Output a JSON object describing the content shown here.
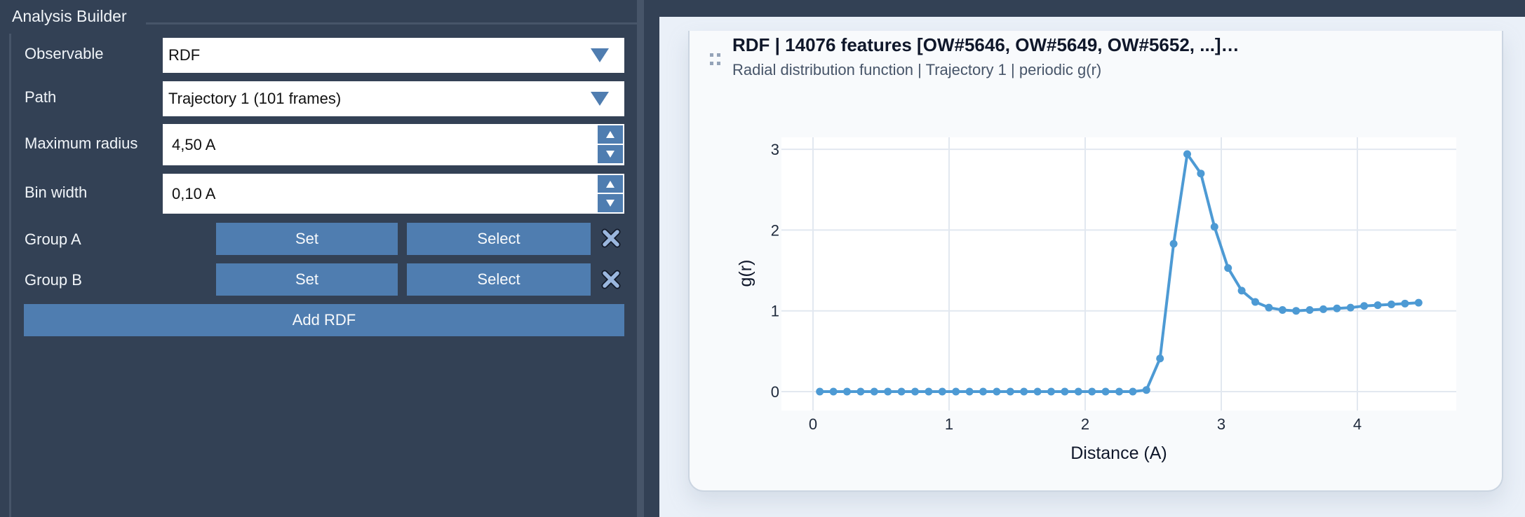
{
  "left_panel": {
    "title": "Analysis Builder",
    "fields": {
      "observable": {
        "label": "Observable",
        "value": "RDF"
      },
      "path": {
        "label": "Path",
        "value": "Trajectory 1 (101 frames)"
      },
      "max_radius": {
        "label": "Maximum radius",
        "value": "4,50 A"
      },
      "bin_width": {
        "label": "Bin width",
        "value": "0,10 A"
      }
    },
    "groups": [
      {
        "label": "Group A",
        "set_label": "Set",
        "select_label": "Select"
      },
      {
        "label": "Group B",
        "set_label": "Set",
        "select_label": "Select"
      }
    ],
    "add_button": "Add RDF"
  },
  "card": {
    "title": "RDF | 14076 features [OW#5646, OW#5649, OW#5652, ...]…",
    "subtitle": "Radial distribution function | Trajectory 1 | periodic g(r)"
  },
  "colors": {
    "accent": "#4f7db0",
    "line": "#4d9ad4",
    "panel_bg": "#334155"
  },
  "chart_data": {
    "type": "line",
    "title": "RDF | 14076 features [OW#5646, OW#5649, OW#5652, ...]…",
    "subtitle": "Radial distribution function | Trajectory 1 | periodic g(r)",
    "xlabel": "Distance (A)",
    "ylabel": "g(r)",
    "xlim": [
      -0.22,
      4.7
    ],
    "ylim": [
      -0.2,
      3.15
    ],
    "xticks": [
      0,
      1,
      2,
      3,
      4
    ],
    "yticks": [
      0,
      1,
      2,
      3
    ],
    "grid": true,
    "legend": "none",
    "markers": true,
    "series": [
      {
        "name": "g(r)",
        "x": [
          0.05,
          0.15,
          0.25,
          0.35,
          0.45,
          0.55,
          0.65,
          0.75,
          0.85,
          0.95,
          1.05,
          1.15,
          1.25,
          1.35,
          1.45,
          1.55,
          1.65,
          1.75,
          1.85,
          1.95,
          2.05,
          2.15,
          2.25,
          2.35,
          2.45,
          2.55,
          2.65,
          2.75,
          2.85,
          2.95,
          3.05,
          3.15,
          3.25,
          3.35,
          3.45,
          3.55,
          3.65,
          3.75,
          3.85,
          3.95,
          4.05,
          4.15,
          4.25,
          4.35,
          4.45
        ],
        "values": [
          0,
          0,
          0,
          0,
          0,
          0,
          0,
          0,
          0,
          0,
          0,
          0,
          0,
          0,
          0,
          0,
          0,
          0,
          0,
          0,
          0,
          0,
          0,
          0,
          0.02,
          0.41,
          1.83,
          2.94,
          2.7,
          2.04,
          1.53,
          1.25,
          1.11,
          1.04,
          1.01,
          1.0,
          1.01,
          1.02,
          1.03,
          1.04,
          1.06,
          1.07,
          1.08,
          1.09,
          1.1
        ]
      }
    ]
  }
}
